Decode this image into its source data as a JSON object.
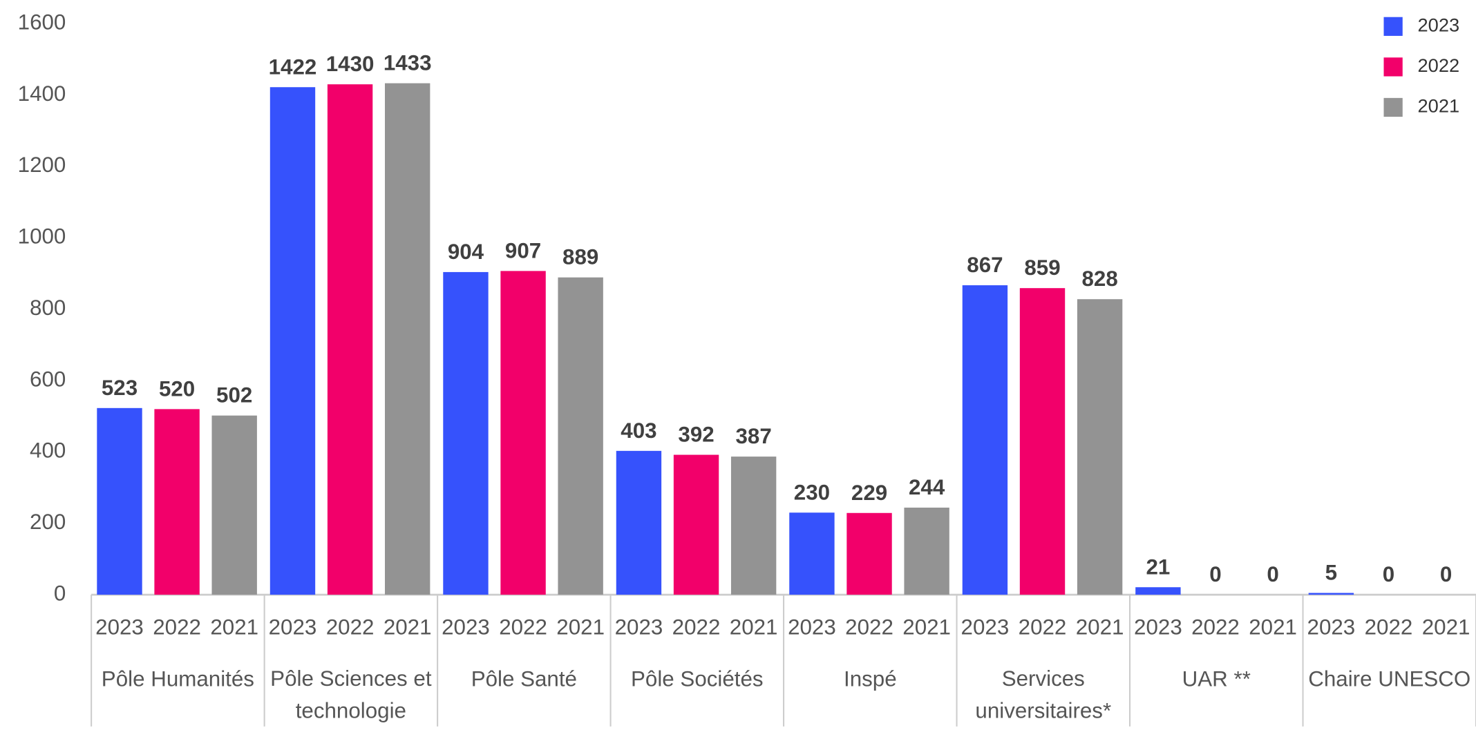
{
  "chart_data": {
    "type": "bar",
    "categories": [
      "Pôle Humanités",
      "Pôle Sciences et technologie",
      "Pôle Santé",
      "Pôle Sociétés",
      "Inspé",
      "Services universitaires*",
      "UAR **",
      "Chaire UNESCO"
    ],
    "series": [
      {
        "name": "2023",
        "color": "#3652fc",
        "values": [
          523,
          1422,
          904,
          403,
          230,
          867,
          21,
          5
        ]
      },
      {
        "name": "2022",
        "color": "#f2006a",
        "values": [
          520,
          1430,
          907,
          392,
          229,
          859,
          0,
          0
        ]
      },
      {
        "name": "2021",
        "color": "#939393",
        "values": [
          502,
          1433,
          889,
          387,
          244,
          828,
          0,
          0
        ]
      }
    ],
    "ylim": [
      0,
      1600
    ],
    "yticks": [
      0,
      200,
      400,
      600,
      800,
      1000,
      1200,
      1400,
      1600
    ],
    "legend": "top-right"
  }
}
